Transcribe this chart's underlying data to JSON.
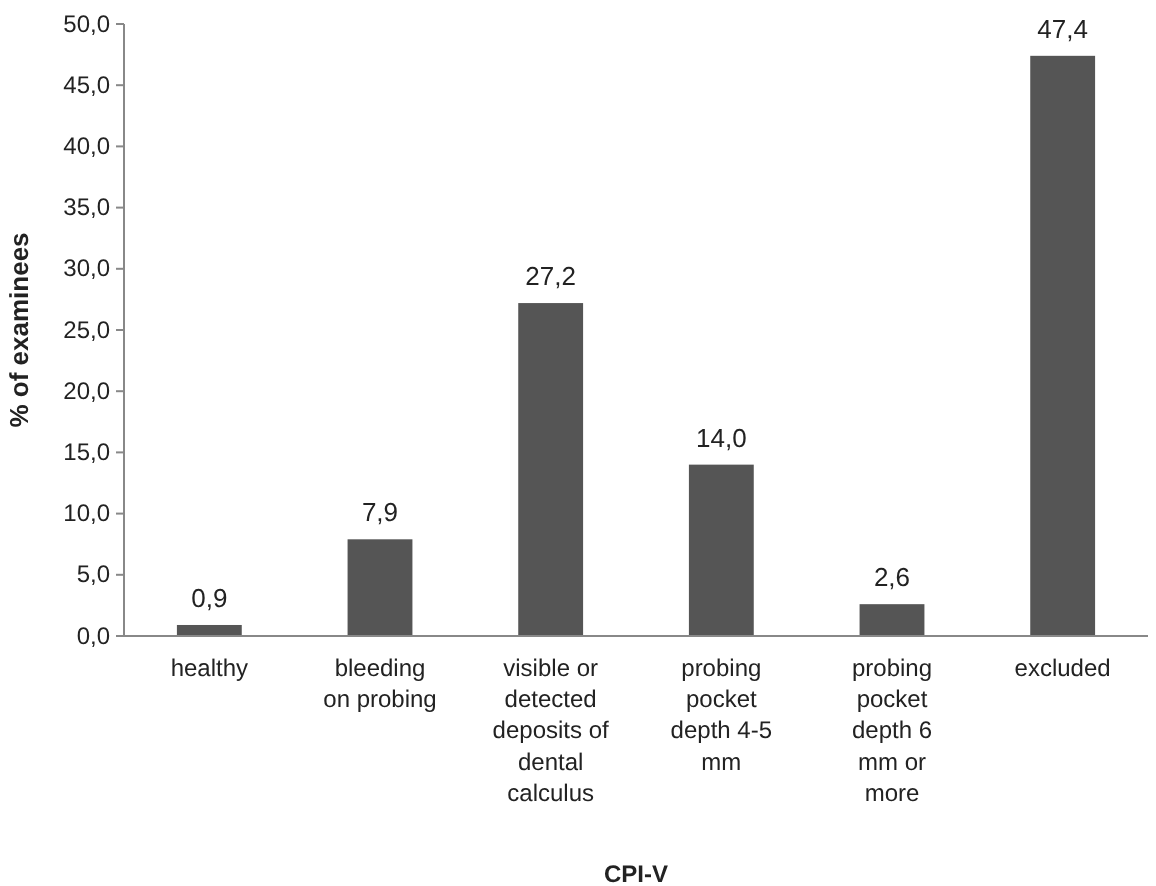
{
  "chart_data": {
    "type": "bar",
    "xlabel": "CPI-V",
    "ylabel": "% of examinees",
    "categories": [
      "healthy",
      "bleeding on probing",
      "visible or detected deposits of dental calculus",
      "probing pocket depth 4-5 mm",
      "probing pocket depth 6 mm or more",
      "excluded"
    ],
    "values": [
      0.9,
      7.9,
      27.2,
      14.0,
      2.6,
      47.4
    ],
    "value_labels": [
      "0,9",
      "7,9",
      "27,2",
      "14,0",
      "2,6",
      "47,4"
    ],
    "color": "#555555",
    "ylim": [
      0,
      50
    ],
    "yticks": [
      {
        "value": 0,
        "label": "0,0"
      },
      {
        "value": 5,
        "label": "5,0"
      },
      {
        "value": 10,
        "label": "10,0"
      },
      {
        "value": 15,
        "label": "15,0"
      },
      {
        "value": 20,
        "label": "20,0"
      },
      {
        "value": 25,
        "label": "25,0"
      },
      {
        "value": 30,
        "label": "30,0"
      },
      {
        "value": 35,
        "label": "35,0"
      },
      {
        "value": 40,
        "label": "40,0"
      },
      {
        "value": 45,
        "label": "45,0"
      },
      {
        "value": 50,
        "label": "50,0"
      }
    ],
    "grid": false
  }
}
